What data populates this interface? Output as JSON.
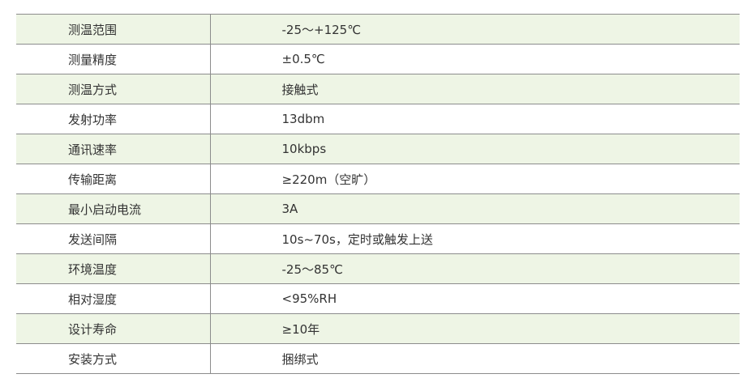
{
  "table": {
    "rows": [
      [
        "测温范围",
        "-25～+125℃"
      ],
      [
        "测量精度",
        "±0.5℃"
      ],
      [
        "测温方式",
        "接触式"
      ],
      [
        "发射功率",
        "13dbm"
      ],
      [
        "通讯速率",
        "10kbps"
      ],
      [
        "传输距离",
        "≥220m（空旷）"
      ],
      [
        "最小启动电流",
        "3A"
      ],
      [
        "发送间隔",
        "10s~70s，定时或触发上送"
      ],
      [
        "环境温度",
        "-25～85℃"
      ],
      [
        "相对湿度",
        "<95%RH"
      ],
      [
        "设计寿命",
        "≥10年"
      ],
      [
        "安装方式",
        "捆绑式"
      ]
    ]
  }
}
